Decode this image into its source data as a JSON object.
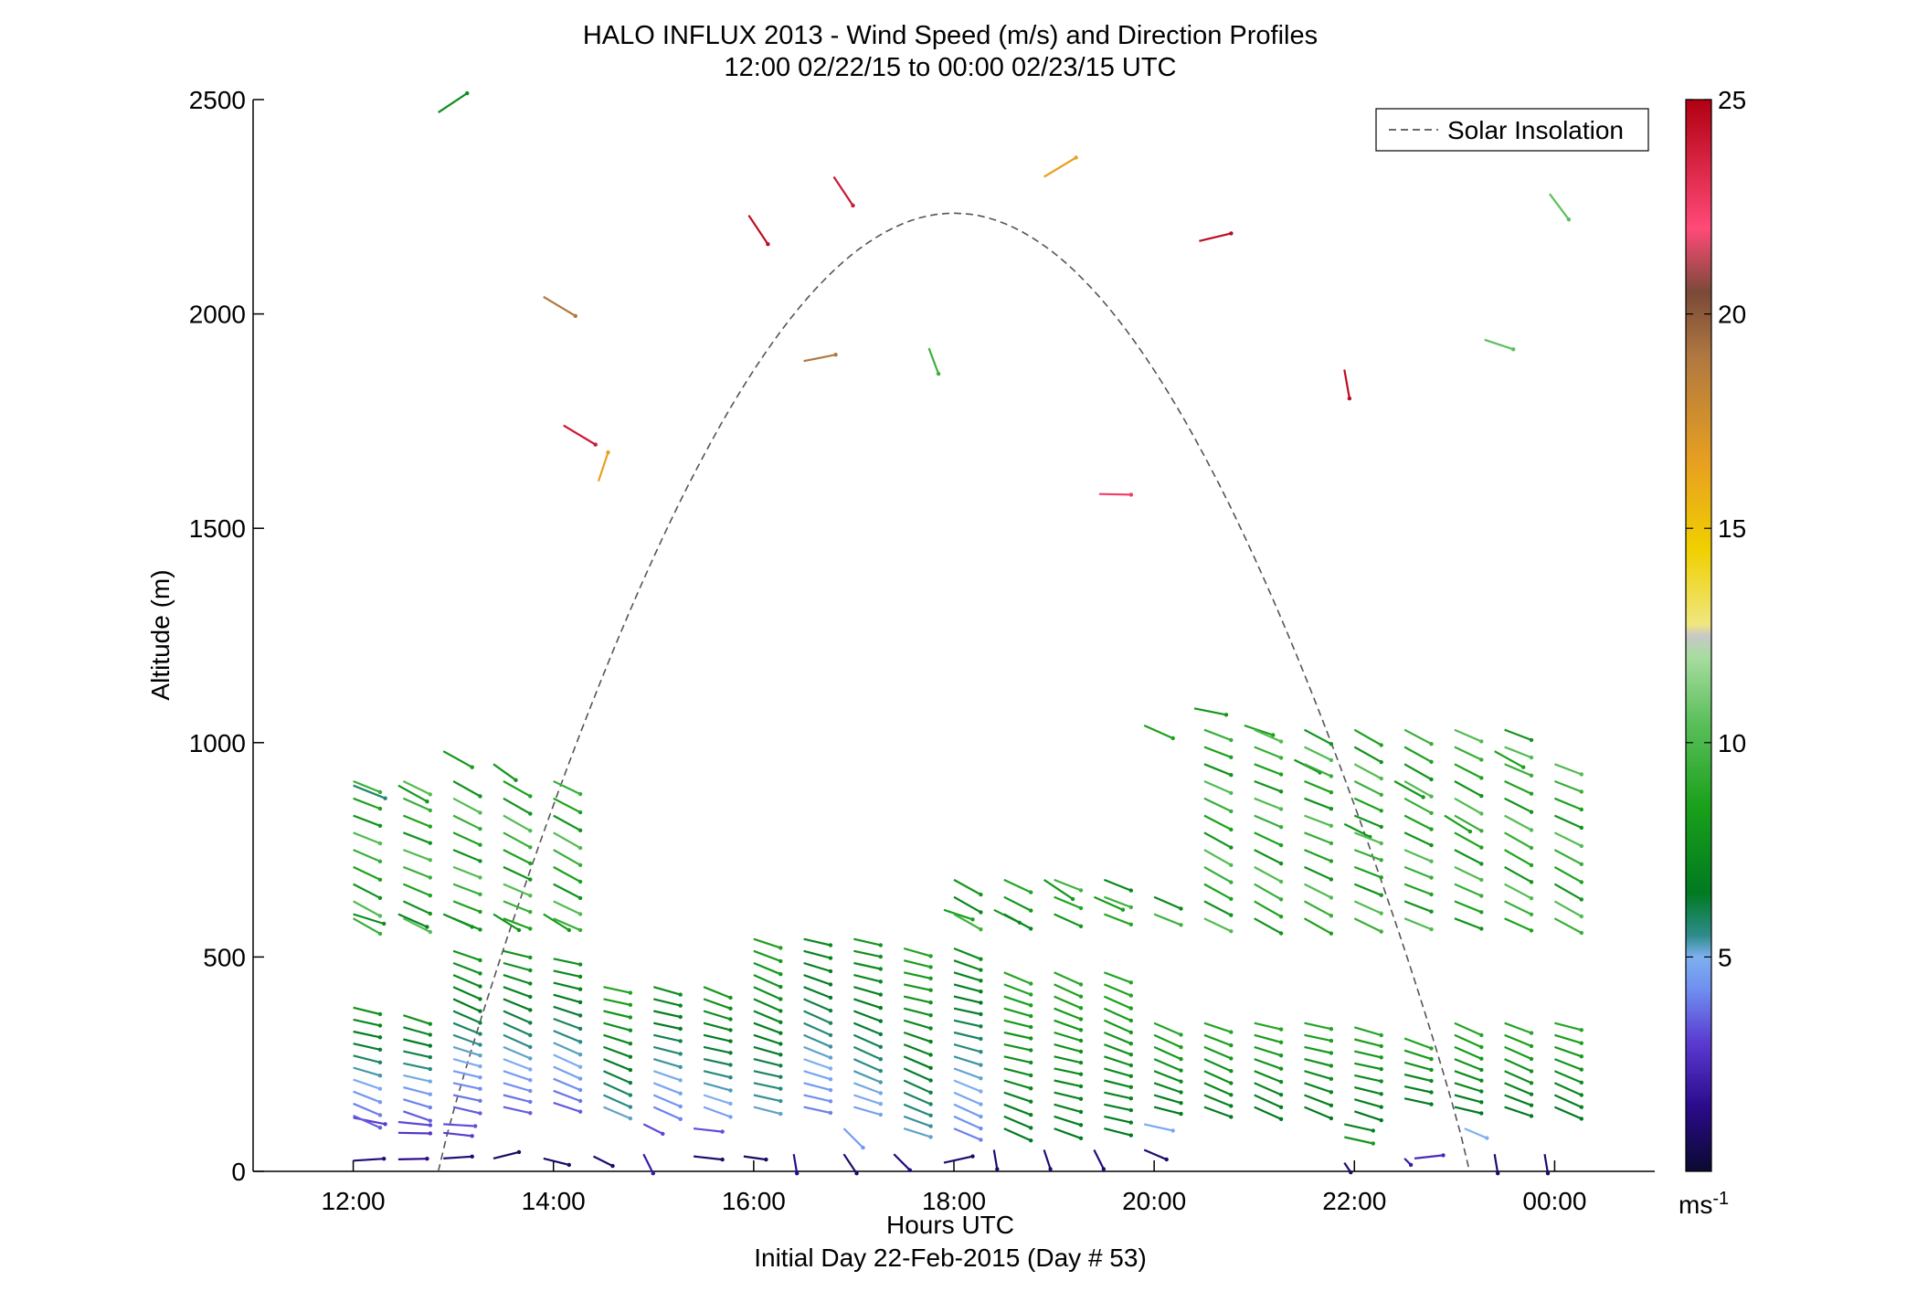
{
  "chart_data": {
    "type": "scatter",
    "title": "HALO INFLUX 2013 - Wind Speed (m/s) and Direction Profiles",
    "subtitle": "12:00 02/22/15 to 00:00 02/23/15  UTC",
    "xlabel": "Hours UTC",
    "xlabel2": "Initial Day 22-Feb-2015 (Day # 53)",
    "ylabel": "Altitude (m)",
    "x_ticks": [
      "12:00",
      "14:00",
      "16:00",
      "18:00",
      "20:00",
      "22:00",
      "00:00"
    ],
    "x_tick_hours": [
      12,
      14,
      16,
      18,
      20,
      22,
      24
    ],
    "xlim": [
      11,
      25
    ],
    "ylim": [
      0,
      2500
    ],
    "y_ticks": [
      0,
      500,
      1000,
      1500,
      2000,
      2500
    ],
    "colorbar": {
      "range": [
        0,
        25
      ],
      "ticks": [
        5,
        10,
        15,
        20,
        25
      ],
      "unit_base": "ms",
      "unit_sup": "-1"
    },
    "legend": {
      "position": "top-right",
      "entries": [
        "Solar Insolation"
      ]
    },
    "solar_insolation": {
      "start_hour": 12.85,
      "end_hour": 23.15,
      "peak_hour": 18.0,
      "peak_altitude": 2235
    },
    "wind_profiles": [
      {
        "t": 12.0,
        "z": 25,
        "speed": 1.2,
        "vx": 0.48,
        "vy": 0.03
      },
      {
        "t": 12.45,
        "z": 28,
        "speed": 1.5,
        "vx": 0.45,
        "vy": 0.01
      },
      {
        "t": 12.9,
        "z": 30,
        "speed": 1.1,
        "vx": 0.45,
        "vy": 0.03
      },
      {
        "t": 13.4,
        "z": 30,
        "speed": 0.8,
        "vx": 0.4,
        "vy": 0.1
      },
      {
        "t": 13.9,
        "z": 30,
        "speed": 0.9,
        "vx": 0.4,
        "vy": -0.1
      },
      {
        "t": 14.4,
        "z": 35,
        "speed": 1.0,
        "vx": 0.3,
        "vy": -0.15
      },
      {
        "t": 14.9,
        "z": 40,
        "speed": 2.0,
        "vx": 0.15,
        "vy": -0.3
      },
      {
        "t": 15.4,
        "z": 35,
        "speed": 1.0,
        "vx": 0.45,
        "vy": -0.05
      },
      {
        "t": 15.9,
        "z": 35,
        "speed": 0.8,
        "vx": 0.35,
        "vy": -0.05
      },
      {
        "t": 16.4,
        "z": 40,
        "speed": 1.5,
        "vx": 0.05,
        "vy": -0.3
      },
      {
        "t": 16.9,
        "z": 40,
        "speed": 1.0,
        "vx": 0.2,
        "vy": -0.3
      },
      {
        "t": 17.4,
        "z": 40,
        "speed": 1.2,
        "vx": 0.25,
        "vy": -0.25
      },
      {
        "t": 17.9,
        "z": 20,
        "speed": 1.0,
        "vx": 0.45,
        "vy": 0.1
      },
      {
        "t": 18.4,
        "z": 50,
        "speed": 1.0,
        "vx": 0.05,
        "vy": -0.3
      },
      {
        "t": 18.9,
        "z": 50,
        "speed": 1.2,
        "vx": 0.1,
        "vy": -0.3
      },
      {
        "t": 19.4,
        "z": 50,
        "speed": 1.2,
        "vx": 0.15,
        "vy": -0.3
      },
      {
        "t": 19.9,
        "z": 50,
        "speed": 1.0,
        "vx": 0.35,
        "vy": -0.15
      },
      {
        "t": 21.9,
        "z": 20,
        "speed": 1.0,
        "vx": 0.1,
        "vy": -0.15
      },
      {
        "t": 22.5,
        "z": 30,
        "speed": 2.0,
        "vx": 0.1,
        "vy": -0.1
      },
      {
        "t": 22.6,
        "z": 30,
        "speed": 2.5,
        "vx": 0.45,
        "vy": 0.05
      },
      {
        "t": 23.4,
        "z": 40,
        "speed": 1.0,
        "vx": 0.05,
        "vy": -0.3
      },
      {
        "t": 23.9,
        "z": 40,
        "speed": 1.0,
        "vx": 0.05,
        "vy": -0.3
      },
      {
        "t": 12.0,
        "z": 125,
        "speed": 3.0,
        "vx": 0.5,
        "vy": -0.1
      },
      {
        "t": 12.45,
        "z": 115,
        "speed": 3.2,
        "vx": 0.5,
        "vy": -0.05
      },
      {
        "t": 12.9,
        "z": 110,
        "speed": 3.3,
        "vx": 0.5,
        "vy": -0.03
      },
      {
        "t": 14.9,
        "z": 110,
        "speed": 3.2,
        "vx": 0.3,
        "vy": -0.15
      },
      {
        "t": 15.4,
        "z": 100,
        "speed": 3.3,
        "vx": 0.45,
        "vy": -0.05
      },
      {
        "t": 23.1,
        "z": 100,
        "speed": 5.0,
        "vx": 0.35,
        "vy": -0.15
      },
      {
        "t": 12.45,
        "z": 90,
        "speed": 2.8,
        "vx": 0.5,
        "vy": -0.01
      },
      {
        "t": 12.9,
        "z": 90,
        "speed": 3.0,
        "vx": 0.45,
        "vy": -0.05
      },
      {
        "t": 21.9,
        "z": 110,
        "speed": 7.0,
        "vx": 0.45,
        "vy": -0.1
      },
      {
        "t": 21.9,
        "z": 80,
        "speed": 8.0,
        "vx": 0.45,
        "vy": -0.1
      },
      {
        "t": 19.9,
        "z": 110,
        "speed": 4.8,
        "vx": 0.45,
        "vy": -0.1
      },
      {
        "t": 16.9,
        "z": 100,
        "speed": 4.5,
        "vx": 0.3,
        "vy": -0.3
      },
      {
        "t": 12.0,
        "z": 600,
        "speed": 7.5,
        "vx": 0.48,
        "vy": -0.15
      },
      {
        "t": 12.45,
        "z": 600,
        "speed": 7.0,
        "vx": 0.45,
        "vy": -0.2
      },
      {
        "t": 12.9,
        "z": 600,
        "speed": 7.5,
        "vx": 0.45,
        "vy": -0.2
      },
      {
        "t": 13.4,
        "z": 600,
        "speed": 7.8,
        "vx": 0.4,
        "vy": -0.25
      },
      {
        "t": 13.9,
        "z": 600,
        "speed": 8.2,
        "vx": 0.4,
        "vy": -0.25
      },
      {
        "t": 12.0,
        "z": 900,
        "speed": 5.8,
        "vx": 0.5,
        "vy": -0.2
      },
      {
        "t": 12.45,
        "z": 900,
        "speed": 8.0,
        "vx": 0.45,
        "vy": -0.25
      },
      {
        "t": 12.9,
        "z": 980,
        "speed": 8.0,
        "vx": 0.45,
        "vy": -0.25
      },
      {
        "t": 13.4,
        "z": 950,
        "speed": 8.0,
        "vx": 0.35,
        "vy": -0.25
      },
      {
        "t": 17.9,
        "z": 610,
        "speed": 8.5,
        "vx": 0.45,
        "vy": -0.15
      },
      {
        "t": 18.4,
        "z": 610,
        "speed": 8.0,
        "vx": 0.4,
        "vy": -0.2
      },
      {
        "t": 18.9,
        "z": 680,
        "speed": 8.0,
        "vx": 0.45,
        "vy": -0.3
      },
      {
        "t": 19.4,
        "z": 640,
        "speed": 8.3,
        "vx": 0.45,
        "vy": -0.2
      },
      {
        "t": 19.9,
        "z": 1040,
        "speed": 8.5,
        "vx": 0.45,
        "vy": -0.2
      },
      {
        "t": 20.4,
        "z": 1080,
        "speed": 8.0,
        "vx": 0.5,
        "vy": -0.1
      },
      {
        "t": 20.9,
        "z": 1040,
        "speed": 8.5,
        "vx": 0.45,
        "vy": -0.15
      },
      {
        "t": 21.4,
        "z": 960,
        "speed": 8.0,
        "vx": 0.4,
        "vy": -0.2
      },
      {
        "t": 21.9,
        "z": 810,
        "speed": 8.0,
        "vx": 0.4,
        "vy": -0.2
      },
      {
        "t": 22.4,
        "z": 910,
        "speed": 8.0,
        "vx": 0.45,
        "vy": -0.25
      },
      {
        "t": 22.9,
        "z": 830,
        "speed": 8.5,
        "vx": 0.4,
        "vy": -0.25
      },
      {
        "t": 23.4,
        "z": 980,
        "speed": 8.5,
        "vx": 0.45,
        "vy": -0.25
      },
      {
        "t": 12.85,
        "z": 2470,
        "speed": 7.5,
        "vx": 0.45,
        "vy": 0.3
      },
      {
        "t": 13.9,
        "z": 2040,
        "speed": 19.0,
        "vx": 0.5,
        "vy": -0.3
      },
      {
        "t": 14.1,
        "z": 1740,
        "speed": 24.0,
        "vx": 0.5,
        "vy": -0.3
      },
      {
        "t": 14.45,
        "z": 1610,
        "speed": 16.5,
        "vx": 0.15,
        "vy": 0.45
      },
      {
        "t": 15.95,
        "z": 2230,
        "speed": 24.5,
        "vx": 0.3,
        "vy": -0.45
      },
      {
        "t": 16.5,
        "z": 1890,
        "speed": 19.0,
        "vx": 0.5,
        "vy": 0.1
      },
      {
        "t": 16.8,
        "z": 2320,
        "speed": 24.0,
        "vx": 0.3,
        "vy": -0.45
      },
      {
        "t": 17.75,
        "z": 1920,
        "speed": 9.5,
        "vx": 0.15,
        "vy": -0.4
      },
      {
        "t": 18.9,
        "z": 2320,
        "speed": 16.5,
        "vx": 0.5,
        "vy": 0.3
      },
      {
        "t": 19.45,
        "z": 1580,
        "speed": 22.5,
        "vx": 0.5,
        "vy": -0.01
      },
      {
        "t": 20.45,
        "z": 2170,
        "speed": 24.5,
        "vx": 0.5,
        "vy": 0.12
      },
      {
        "t": 21.9,
        "z": 1870,
        "speed": 24.5,
        "vx": 0.08,
        "vy": -0.45
      },
      {
        "t": 23.3,
        "z": 1940,
        "speed": 10.5,
        "vx": 0.45,
        "vy": -0.15
      },
      {
        "t": 23.95,
        "z": 2280,
        "speed": 10.5,
        "vx": 0.3,
        "vy": -0.4
      }
    ]
  }
}
